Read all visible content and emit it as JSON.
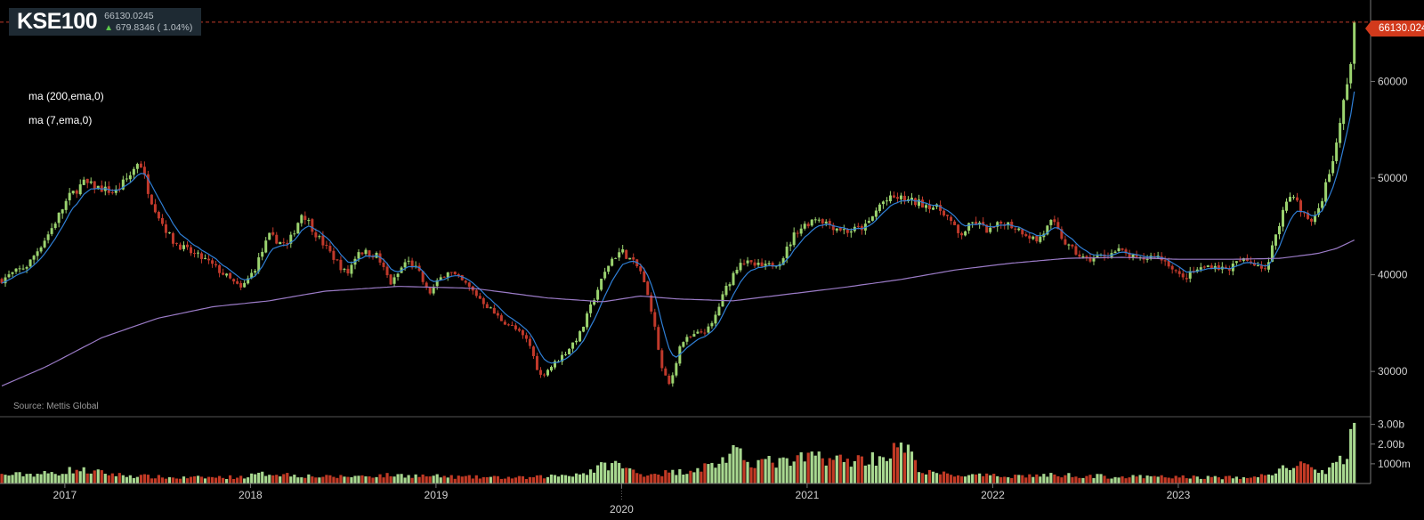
{
  "ticker": {
    "symbol": "KSE100",
    "last": "66130.0245",
    "change": "679.8346 ( 1.04%)",
    "last_tag": "66130.024"
  },
  "indicators": [
    "ma (200,ema,0)",
    "ma (7,ema,0)"
  ],
  "source": "Source: Mettis Global",
  "colors": {
    "up": "#9bd36f",
    "down": "#c0392b",
    "ma200": "#9b7bc7",
    "ma7": "#2f7fd6",
    "vol_up": "#a8d890",
    "vol_down": "#c23a25",
    "last_line": "#c0392b"
  },
  "chart_data": {
    "type": "candlestick",
    "price_axis": {
      "ticks": [
        30000,
        40000,
        50000,
        60000
      ],
      "labels": [
        "30000",
        "40000",
        "50000",
        "60000"
      ],
      "range": [
        25500,
        67500
      ]
    },
    "volume_axis": {
      "ticks": [
        1000000000,
        2000000000,
        3000000000
      ],
      "labels": [
        "1000m",
        "2.00b",
        "3.00b"
      ],
      "range": [
        0,
        3300000000
      ]
    },
    "x_axis": {
      "labels": [
        "2017",
        "2018",
        "2019",
        "2020",
        "2021",
        "2022",
        "2023"
      ],
      "label_dates": [
        2017.0,
        2018.0,
        2019.0,
        2020.0,
        2021.0,
        2022.0,
        2023.0
      ],
      "range": [
        2016.66,
        2023.95
      ]
    },
    "last_value": 66130.0245,
    "close_anchors": [
      [
        2016.66,
        39500
      ],
      [
        2016.8,
        41000
      ],
      [
        2016.92,
        44500
      ],
      [
        2017.02,
        48000
      ],
      [
        2017.1,
        49500
      ],
      [
        2017.18,
        49000
      ],
      [
        2017.27,
        48500
      ],
      [
        2017.36,
        50500
      ],
      [
        2017.4,
        52000
      ],
      [
        2017.46,
        48000
      ],
      [
        2017.52,
        45500
      ],
      [
        2017.58,
        43500
      ],
      [
        2017.66,
        42500
      ],
      [
        2017.76,
        41500
      ],
      [
        2017.86,
        40000
      ],
      [
        2017.95,
        38500
      ],
      [
        2018.02,
        40500
      ],
      [
        2018.1,
        44000
      ],
      [
        2018.2,
        43000
      ],
      [
        2018.28,
        46500
      ],
      [
        2018.36,
        44000
      ],
      [
        2018.44,
        42000
      ],
      [
        2018.52,
        40000
      ],
      [
        2018.58,
        42500
      ],
      [
        2018.68,
        42000
      ],
      [
        2018.76,
        39000
      ],
      [
        2018.84,
        41500
      ],
      [
        2018.9,
        40500
      ],
      [
        2018.96,
        38000
      ],
      [
        2019.06,
        40500
      ],
      [
        2019.16,
        39000
      ],
      [
        2019.24,
        37500
      ],
      [
        2019.34,
        35500
      ],
      [
        2019.42,
        34500
      ],
      [
        2019.5,
        33000
      ],
      [
        2019.56,
        29500
      ],
      [
        2019.62,
        30500
      ],
      [
        2019.7,
        32000
      ],
      [
        2019.78,
        34000
      ],
      [
        2019.86,
        38000
      ],
      [
        2019.94,
        41500
      ],
      [
        2020.0,
        42500
      ],
      [
        2020.1,
        40500
      ],
      [
        2020.16,
        36500
      ],
      [
        2020.22,
        30000
      ],
      [
        2020.26,
        28500
      ],
      [
        2020.32,
        33000
      ],
      [
        2020.4,
        33800
      ],
      [
        2020.48,
        34500
      ],
      [
        2020.56,
        38500
      ],
      [
        2020.64,
        41500
      ],
      [
        2020.7,
        41000
      ],
      [
        2020.78,
        40800
      ],
      [
        2020.86,
        41500
      ],
      [
        2020.94,
        44500
      ],
      [
        2021.05,
        46000
      ],
      [
        2021.14,
        45000
      ],
      [
        2021.22,
        44500
      ],
      [
        2021.32,
        45000
      ],
      [
        2021.4,
        47500
      ],
      [
        2021.48,
        48000
      ],
      [
        2021.58,
        47500
      ],
      [
        2021.66,
        47200
      ],
      [
        2021.74,
        46500
      ],
      [
        2021.82,
        44000
      ],
      [
        2021.9,
        45500
      ],
      [
        2021.98,
        44500
      ],
      [
        2022.06,
        45500
      ],
      [
        2022.16,
        44500
      ],
      [
        2022.24,
        43500
      ],
      [
        2022.32,
        45500
      ],
      [
        2022.4,
        43000
      ],
      [
        2022.5,
        41500
      ],
      [
        2022.6,
        42000
      ],
      [
        2022.68,
        42500
      ],
      [
        2022.78,
        41500
      ],
      [
        2022.88,
        42000
      ],
      [
        2022.96,
        41000
      ],
      [
        2023.02,
        39500
      ],
      [
        2023.1,
        40500
      ],
      [
        2023.18,
        41000
      ],
      [
        2023.26,
        40500
      ],
      [
        2023.34,
        41500
      ],
      [
        2023.42,
        41200
      ],
      [
        2023.48,
        40500
      ],
      [
        2023.52,
        44000
      ],
      [
        2023.58,
        47500
      ],
      [
        2023.62,
        48500
      ],
      [
        2023.66,
        46500
      ],
      [
        2023.72,
        45500
      ],
      [
        2023.76,
        47000
      ],
      [
        2023.82,
        51000
      ],
      [
        2023.86,
        54000
      ],
      [
        2023.9,
        59000
      ],
      [
        2023.93,
        62000
      ],
      [
        2023.95,
        66130
      ]
    ],
    "ma200_anchors": [
      [
        2016.66,
        28500
      ],
      [
        2016.9,
        30500
      ],
      [
        2017.2,
        33500
      ],
      [
        2017.5,
        35500
      ],
      [
        2017.8,
        36700
      ],
      [
        2018.1,
        37300
      ],
      [
        2018.4,
        38300
      ],
      [
        2018.8,
        38800
      ],
      [
        2019.2,
        38600
      ],
      [
        2019.6,
        37600
      ],
      [
        2019.9,
        37200
      ],
      [
        2020.1,
        37800
      ],
      [
        2020.3,
        37500
      ],
      [
        2020.6,
        37300
      ],
      [
        2020.9,
        38000
      ],
      [
        2021.2,
        38700
      ],
      [
        2021.5,
        39500
      ],
      [
        2021.8,
        40500
      ],
      [
        2022.1,
        41200
      ],
      [
        2022.4,
        41700
      ],
      [
        2022.7,
        41800
      ],
      [
        2023.0,
        41600
      ],
      [
        2023.3,
        41600
      ],
      [
        2023.55,
        41700
      ],
      [
        2023.75,
        42200
      ],
      [
        2023.85,
        42700
      ],
      [
        2023.95,
        43600
      ]
    ],
    "volume_anchors": [
      [
        2016.66,
        0.45
      ],
      [
        2016.95,
        0.55
      ],
      [
        2017.05,
        0.75
      ],
      [
        2017.3,
        0.45
      ],
      [
        2017.6,
        0.3
      ],
      [
        2017.95,
        0.35
      ],
      [
        2018.1,
        0.55
      ],
      [
        2018.4,
        0.35
      ],
      [
        2018.8,
        0.45
      ],
      [
        2019.1,
        0.35
      ],
      [
        2019.5,
        0.3
      ],
      [
        2019.8,
        0.55
      ],
      [
        2019.95,
        1.1
      ],
      [
        2020.1,
        0.5
      ],
      [
        2020.3,
        0.6
      ],
      [
        2020.5,
        1.0
      ],
      [
        2020.6,
        1.6
      ],
      [
        2020.7,
        1.2
      ],
      [
        2020.9,
        1.1
      ],
      [
        2021.05,
        1.5
      ],
      [
        2021.2,
        1.2
      ],
      [
        2021.4,
        1.4
      ],
      [
        2021.52,
        2.0
      ],
      [
        2021.62,
        0.6
      ],
      [
        2021.8,
        0.45
      ],
      [
        2022.0,
        0.4
      ],
      [
        2022.4,
        0.45
      ],
      [
        2022.7,
        0.35
      ],
      [
        2023.0,
        0.35
      ],
      [
        2023.4,
        0.3
      ],
      [
        2023.55,
        0.7
      ],
      [
        2023.65,
        1.1
      ],
      [
        2023.75,
        0.5
      ],
      [
        2023.85,
        1.0
      ],
      [
        2023.9,
        1.4
      ],
      [
        2023.93,
        2.8
      ],
      [
        2023.95,
        3.1
      ]
    ]
  }
}
